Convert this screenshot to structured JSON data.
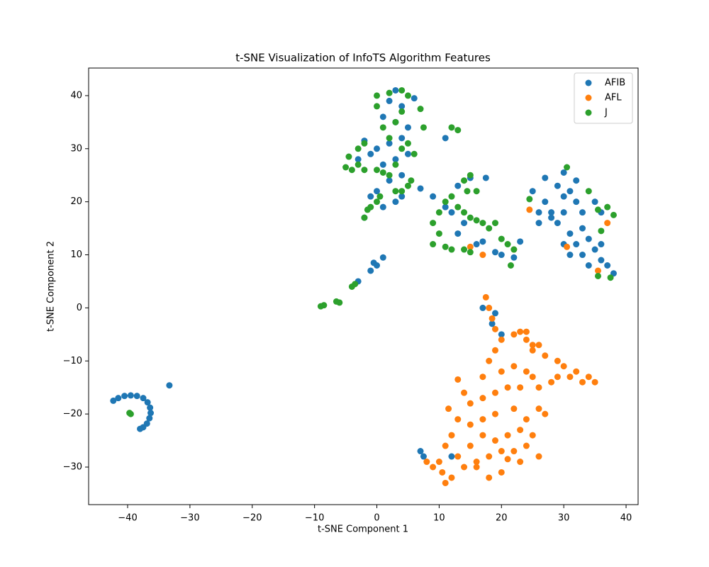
{
  "chart_data": {
    "type": "scatter",
    "title": "t-SNE Visualization of InfoTS Algorithm Features",
    "x_label": "t-SNE Component 1",
    "y_label": "t-SNE Component 2",
    "xlim": [
      -46.26,
      41.93
    ],
    "ylim": [
      -37.08,
      45.2
    ],
    "xticks": [
      {
        "value": -40,
        "label": "−40"
      },
      {
        "value": -30,
        "label": "−30"
      },
      {
        "value": -20,
        "label": "−20"
      },
      {
        "value": -10,
        "label": "−10"
      },
      0,
      10,
      20,
      30,
      40
    ],
    "yticks": [
      {
        "value": -30,
        "label": "−30"
      },
      {
        "value": -20,
        "label": "−20"
      },
      {
        "value": -10,
        "label": "−10"
      },
      0,
      10,
      20,
      30,
      40
    ],
    "legend": "upper right",
    "grid": false,
    "series": [
      {
        "name": "AFIB",
        "color": "#1f77b4",
        "x": [
          -42.3,
          -41.5,
          -40.5,
          -39.5,
          -38.5,
          -37.5,
          -36.8,
          -36.4,
          -36.3,
          -36.5,
          -36.9,
          -37.5,
          -38,
          -33.3,
          2,
          3,
          4,
          6,
          1,
          3,
          5,
          4,
          2,
          0,
          -1,
          -2,
          -3,
          1,
          3,
          5,
          4,
          2,
          0,
          -1,
          1,
          -2,
          3,
          4,
          -3,
          -1,
          -0.5,
          1,
          0,
          7,
          9,
          11,
          12,
          13,
          15,
          17.5,
          14,
          13,
          16,
          17,
          19,
          20,
          22,
          23,
          11,
          25,
          27,
          28,
          29,
          30,
          31,
          32,
          30,
          29,
          31,
          33,
          34,
          35,
          36,
          33,
          32,
          30,
          28,
          26,
          35,
          36,
          37,
          38,
          34,
          36,
          32,
          27,
          30,
          33,
          31,
          26,
          7,
          12,
          17,
          19,
          20,
          18.5,
          7.5
        ],
        "y": [
          -17.5,
          -17,
          -16.6,
          -16.5,
          -16.6,
          -17,
          -17.8,
          -18.8,
          -19.8,
          -20.8,
          -21.8,
          -22.5,
          -22.8,
          -14.6,
          39,
          41,
          38,
          39.5,
          36,
          35,
          34,
          32,
          31,
          30,
          29,
          31.5,
          28,
          27,
          28,
          29,
          25,
          24,
          22,
          21,
          19,
          17,
          20,
          21,
          5,
          7,
          8.5,
          9.5,
          8,
          22.5,
          21,
          19,
          18,
          23,
          24.5,
          24.5,
          16,
          14,
          12,
          12.5,
          10.5,
          10,
          9.5,
          12.5,
          32,
          22,
          20,
          18,
          23,
          25.5,
          22,
          20,
          18,
          16,
          14,
          15,
          13,
          11,
          9,
          10,
          12,
          12,
          17,
          16,
          20,
          18,
          8,
          6.5,
          8,
          12,
          24,
          24.5,
          21,
          18,
          10,
          18,
          -27,
          -28,
          0,
          -1,
          -5,
          -3,
          -28
        ]
      },
      {
        "name": "AFL",
        "color": "#ff7f0e",
        "x": [
          17.5,
          18,
          18.5,
          19,
          20,
          22,
          23,
          24,
          25,
          26,
          19,
          18,
          17,
          20,
          22,
          24,
          27,
          29,
          30,
          32,
          34,
          35,
          33,
          31,
          28,
          26,
          25,
          23,
          21,
          19,
          17,
          15,
          13,
          14,
          11.5,
          13,
          15,
          17,
          19,
          22,
          24,
          26,
          27,
          25,
          23,
          21,
          19,
          17,
          15,
          13,
          11,
          12,
          10,
          8,
          9,
          10.5,
          11,
          12,
          14,
          16,
          18,
          20,
          18,
          20,
          22,
          24,
          26,
          23,
          21,
          16,
          25,
          29,
          24,
          24.5,
          15,
          17,
          22,
          30.5,
          37,
          35.5
        ],
        "y": [
          2,
          0,
          -2,
          -4,
          -6,
          -5,
          -4.5,
          -6,
          -7,
          -7,
          -8,
          -10,
          -13,
          -12,
          -11,
          -12,
          -9,
          -10,
          -11,
          -12,
          -13,
          -14,
          -14,
          -13,
          -14,
          -15,
          -13,
          -15,
          -15,
          -16,
          -17,
          -18,
          -13.5,
          -16,
          -19,
          -21,
          -22,
          -21,
          -20,
          -19,
          -21,
          -19,
          -20,
          -24,
          -23,
          -24,
          -25,
          -24,
          -26,
          -28,
          -26,
          -24,
          -29,
          -29,
          -30,
          -31,
          -33,
          -32,
          -30,
          -29,
          -32,
          -31,
          -28,
          -27,
          -27,
          -26,
          -28,
          -29,
          -28.5,
          -30,
          -8,
          -13,
          -4.5,
          18.5,
          11.5,
          10,
          11,
          11.5,
          16,
          7
        ]
      },
      {
        "name": "J",
        "color": "#2ca02c",
        "x": [
          -9,
          -8.5,
          -6.5,
          -6,
          -4,
          -3.5,
          -2,
          -1.5,
          -1,
          0,
          0.5,
          -2,
          -3,
          -4,
          -5,
          -4.5,
          -3,
          -2,
          0,
          1,
          2,
          3,
          4,
          5,
          6,
          3,
          4,
          5,
          5.5,
          2,
          1,
          3,
          4,
          0,
          0,
          2,
          4,
          5,
          7,
          7.5,
          12,
          13,
          9,
          10,
          9,
          11,
          12,
          14,
          15,
          10,
          11,
          12,
          13,
          14,
          15,
          16,
          17,
          18,
          19,
          14,
          15,
          14.5,
          16,
          20,
          21,
          22,
          21.5,
          24.5,
          30.5,
          34,
          35.5,
          37,
          38,
          36,
          35.5,
          37.5,
          -39.7,
          -39.5
        ],
        "y": [
          0.3,
          0.5,
          1.2,
          1,
          4,
          4.5,
          17,
          18.5,
          19,
          20,
          21,
          26,
          27,
          26,
          26.5,
          28.5,
          30,
          31,
          26,
          25.5,
          25,
          27,
          30,
          31,
          29,
          22,
          22,
          23,
          24,
          32,
          34,
          35,
          37,
          38,
          40,
          40.5,
          41,
          40,
          37.5,
          34,
          34,
          33.5,
          16,
          14,
          12,
          11.5,
          11,
          11,
          10.5,
          18,
          20,
          21,
          19,
          18,
          17,
          16.5,
          16,
          15,
          16,
          24,
          25,
          22,
          22,
          13,
          12,
          11,
          8,
          20.5,
          26.5,
          22,
          18.5,
          19,
          17.5,
          14.5,
          6,
          5.7,
          -19.8,
          -20
        ]
      }
    ]
  }
}
